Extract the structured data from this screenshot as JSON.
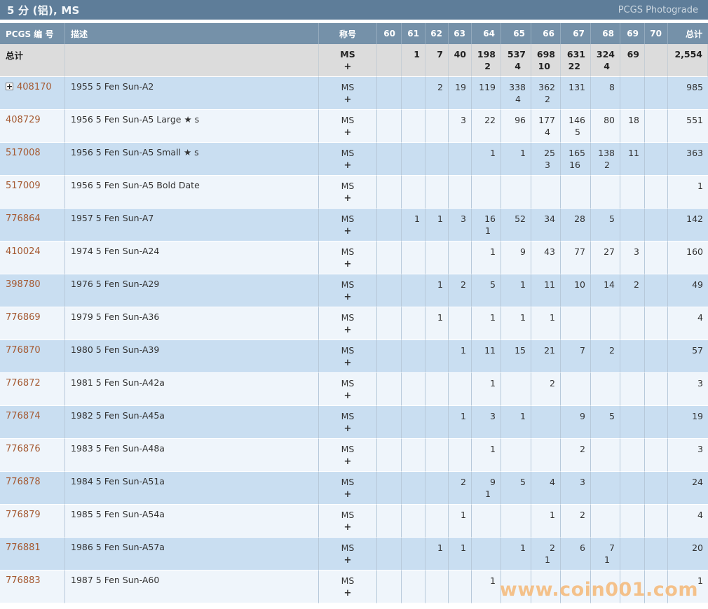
{
  "header": {
    "title": "5 分 (铝), MS",
    "photograde_label": "PCGS Photograde"
  },
  "watermark": "www.coin001.com",
  "icons": {
    "expand_glyph": "+"
  },
  "colors": {
    "title_bar": "#5e7d99",
    "column_header": "#7591a9",
    "row_blue": "#c9def1",
    "row_light": "#eff5fb",
    "total_row_bg": "#dcdcdc",
    "link": "#a55a32",
    "watermark": "#f6b877"
  },
  "table": {
    "columns": [
      "PCGS 编 号",
      "描述",
      "称号",
      "60",
      "61",
      "62",
      "63",
      "64",
      "65",
      "66",
      "67",
      "68",
      "69",
      "70",
      "总计"
    ],
    "designation_line1": "MS",
    "designation_line2": "+",
    "total_row": {
      "label": "总计",
      "grades": [
        "",
        "1",
        "7",
        "40",
        "198|2",
        "537|4",
        "698|10",
        "631|22",
        "324|4",
        "69",
        ""
      ],
      "total": "2,554"
    },
    "rows": [
      {
        "pcgs": "408170",
        "expandable": true,
        "desc": "1955 5 Fen Sun-A2",
        "grades": [
          "",
          "",
          "2",
          "19",
          "119",
          "338|4",
          "362|2",
          "131",
          "8",
          "",
          ""
        ],
        "total": "985"
      },
      {
        "pcgs": "408729",
        "expandable": false,
        "desc": "1956 5 Fen Sun-A5 Large ★ s",
        "grades": [
          "",
          "",
          "",
          "3",
          "22",
          "96",
          "177|4",
          "146|5",
          "80",
          "18",
          ""
        ],
        "total": "551"
      },
      {
        "pcgs": "517008",
        "expandable": false,
        "desc": "1956 5 Fen Sun-A5 Small ★ s",
        "grades": [
          "",
          "",
          "",
          "",
          "1",
          "1",
          "25|3",
          "165|16",
          "138|2",
          "11",
          ""
        ],
        "total": "363"
      },
      {
        "pcgs": "517009",
        "expandable": false,
        "desc": "1956 5 Fen Sun-A5 Bold Date",
        "grades": [
          "",
          "",
          "",
          "",
          "",
          "",
          "",
          "",
          "",
          "",
          ""
        ],
        "total": "1"
      },
      {
        "pcgs": "776864",
        "expandable": false,
        "desc": "1957 5 Fen Sun-A7",
        "grades": [
          "",
          "1",
          "1",
          "3",
          "16|1",
          "52",
          "34",
          "28",
          "5",
          "",
          ""
        ],
        "total": "142"
      },
      {
        "pcgs": "410024",
        "expandable": false,
        "desc": "1974 5 Fen Sun-A24",
        "grades": [
          "",
          "",
          "",
          "",
          "1",
          "9",
          "43",
          "77",
          "27",
          "3",
          ""
        ],
        "total": "160"
      },
      {
        "pcgs": "398780",
        "expandable": false,
        "desc": "1976 5 Fen Sun-A29",
        "grades": [
          "",
          "",
          "1",
          "2",
          "5",
          "1",
          "11",
          "10",
          "14",
          "2",
          ""
        ],
        "total": "49"
      },
      {
        "pcgs": "776869",
        "expandable": false,
        "desc": "1979 5 Fen Sun-A36",
        "grades": [
          "",
          "",
          "1",
          "",
          "1",
          "1",
          "1",
          "",
          "",
          "",
          ""
        ],
        "total": "4"
      },
      {
        "pcgs": "776870",
        "expandable": false,
        "desc": "1980 5 Fen Sun-A39",
        "grades": [
          "",
          "",
          "",
          "1",
          "11",
          "15",
          "21",
          "7",
          "2",
          "",
          ""
        ],
        "total": "57"
      },
      {
        "pcgs": "776872",
        "expandable": false,
        "desc": "1981 5 Fen Sun-A42a",
        "grades": [
          "",
          "",
          "",
          "",
          "1",
          "",
          "2",
          "",
          "",
          "",
          ""
        ],
        "total": "3"
      },
      {
        "pcgs": "776874",
        "expandable": false,
        "desc": "1982 5 Fen Sun-A45a",
        "grades": [
          "",
          "",
          "",
          "1",
          "3",
          "1",
          "",
          "9",
          "5",
          "",
          ""
        ],
        "total": "19"
      },
      {
        "pcgs": "776876",
        "expandable": false,
        "desc": "1983 5 Fen Sun-A48a",
        "grades": [
          "",
          "",
          "",
          "",
          "1",
          "",
          "",
          "2",
          "",
          "",
          ""
        ],
        "total": "3"
      },
      {
        "pcgs": "776878",
        "expandable": false,
        "desc": "1984 5 Fen Sun-A51a",
        "grades": [
          "",
          "",
          "",
          "2",
          "9|1",
          "5",
          "4",
          "3",
          "",
          "",
          ""
        ],
        "total": "24"
      },
      {
        "pcgs": "776879",
        "expandable": false,
        "desc": "1985 5 Fen Sun-A54a",
        "grades": [
          "",
          "",
          "",
          "1",
          "",
          "",
          "1",
          "2",
          "",
          "",
          ""
        ],
        "total": "4"
      },
      {
        "pcgs": "776881",
        "expandable": false,
        "desc": "1986 5 Fen Sun-A57a",
        "grades": [
          "",
          "",
          "1",
          "1",
          "",
          "1",
          "2|1",
          "6",
          "7|1",
          "",
          ""
        ],
        "total": "20"
      },
      {
        "pcgs": "776883",
        "expandable": false,
        "desc": "1987 5 Fen Sun-A60",
        "grades": [
          "",
          "",
          "",
          "",
          "1",
          "",
          "",
          "",
          "",
          "",
          ""
        ],
        "total": "1"
      }
    ]
  }
}
